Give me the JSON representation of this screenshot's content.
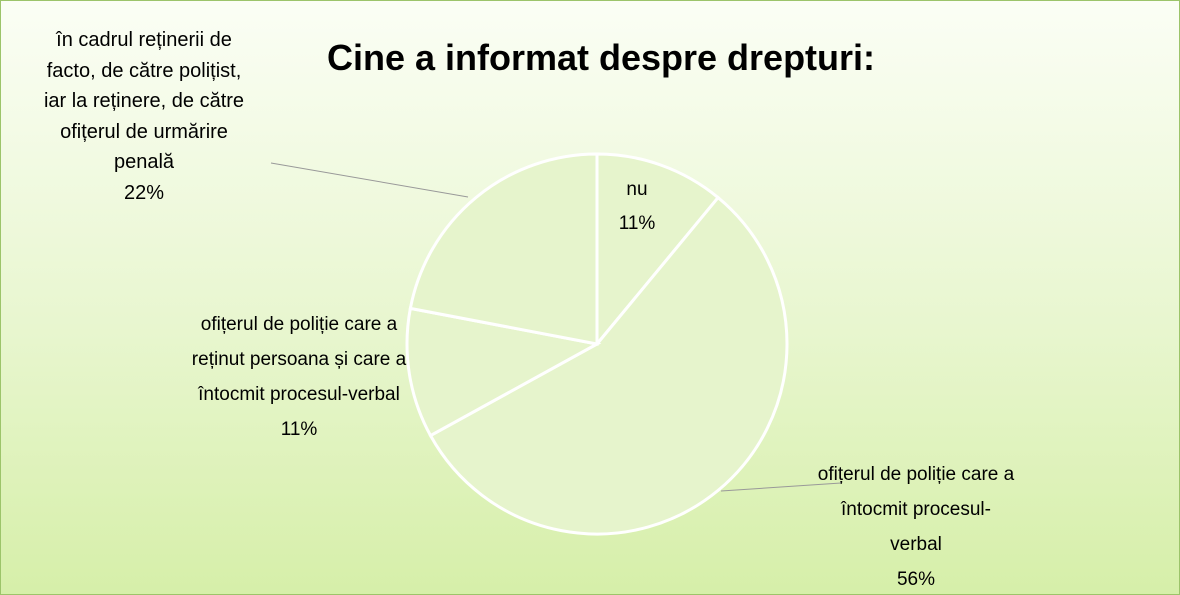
{
  "chart_data": {
    "type": "pie",
    "title": "Cine a informat despre drepturi:",
    "categories": [
      "nu",
      "ofițerul de poliție care a întocmit procesul-verbal",
      "ofițerul de poliție care a reținut persoana și care a întocmit procesul-verbal",
      "în cadrul reținerii de facto, de către polițist, iar la reținere, de către ofițerul de urmărire penală"
    ],
    "values": [
      11,
      56,
      11,
      22
    ],
    "value_labels": [
      "11%",
      "56%",
      "11%",
      "22%"
    ],
    "color": "#e6f4cc"
  }
}
